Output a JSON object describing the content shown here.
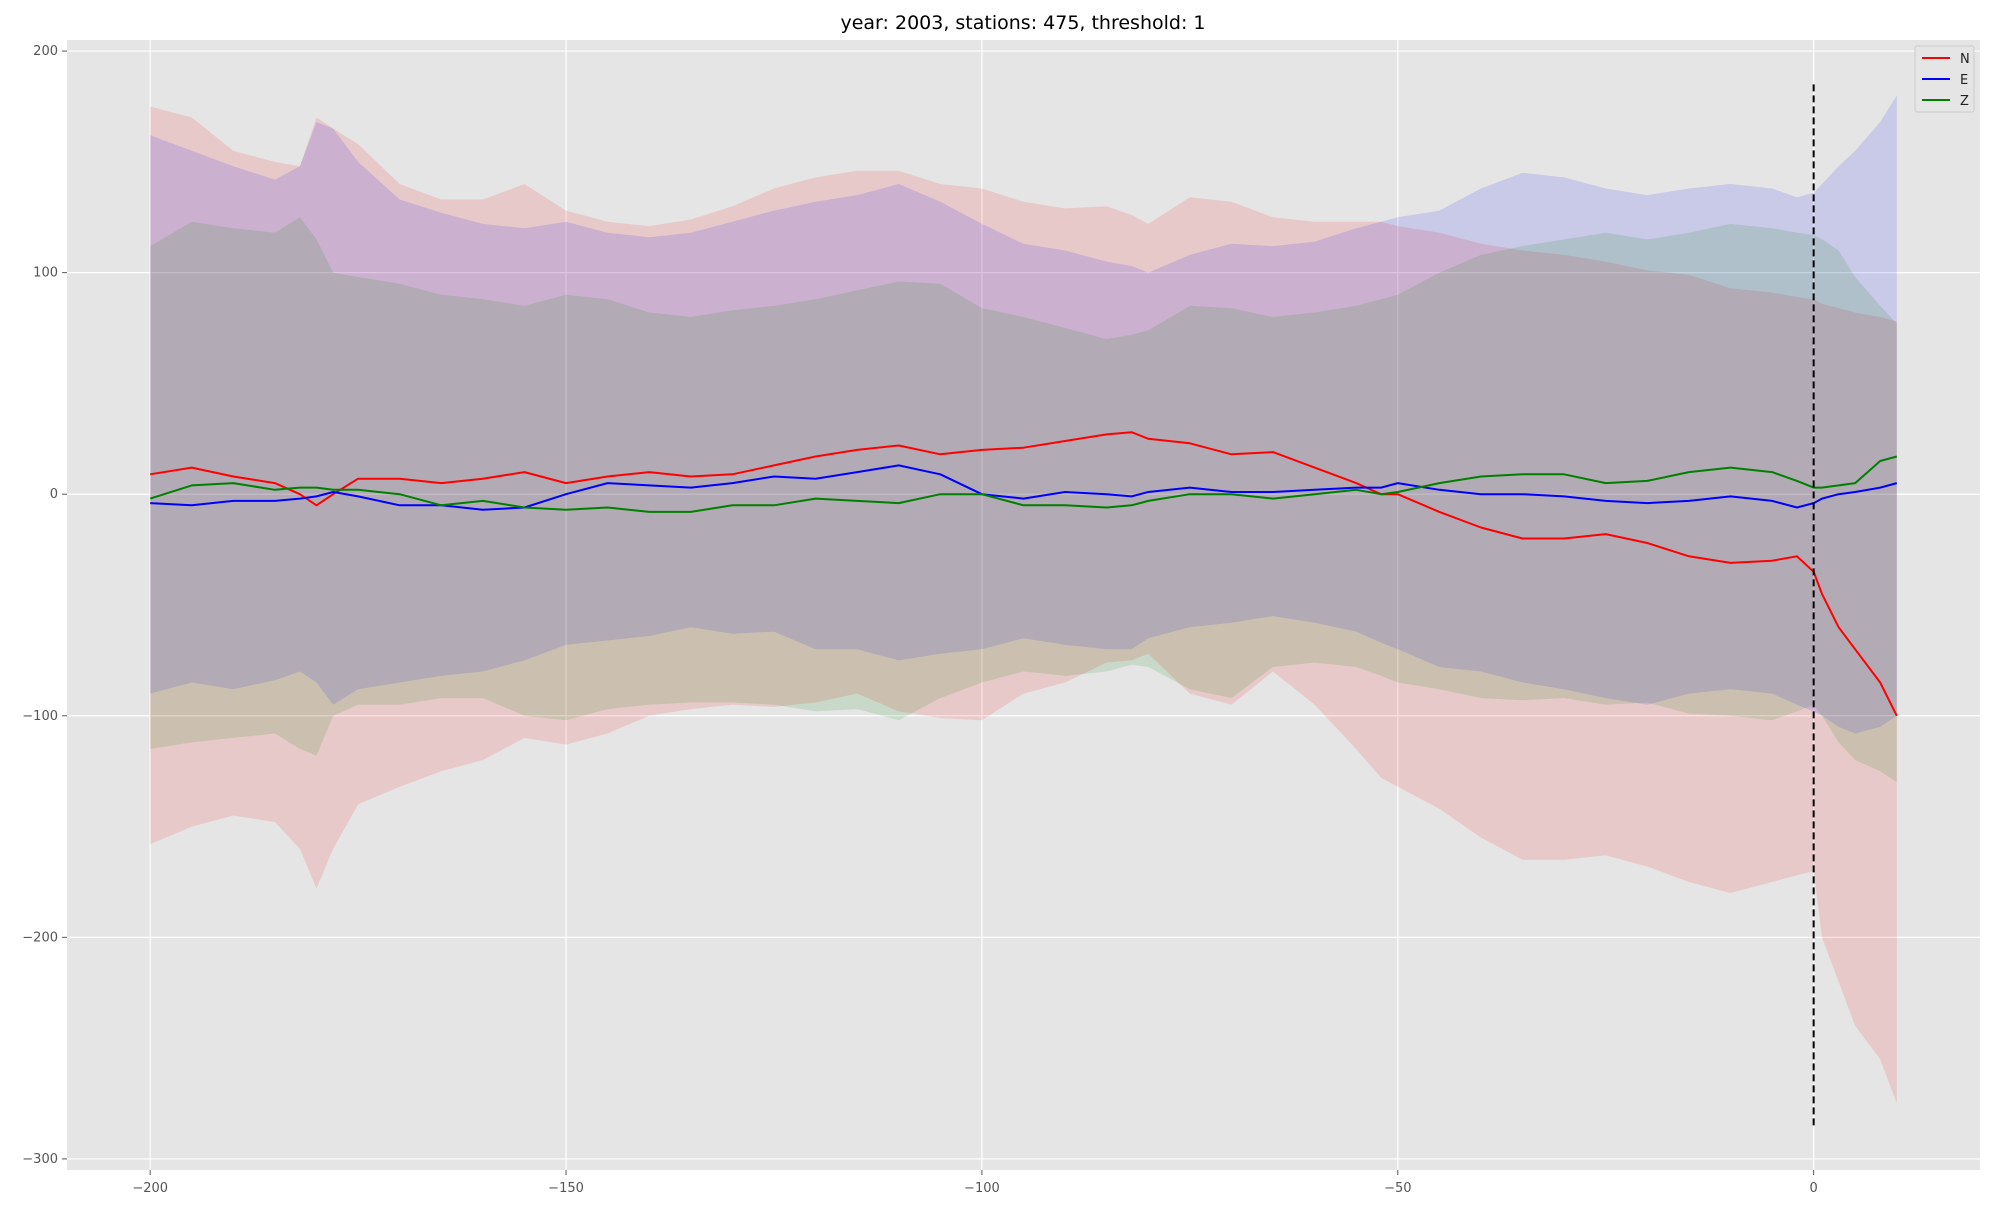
{
  "chart_data": {
    "type": "line",
    "title": "year: 2003, stations: 475, threshold: 1",
    "xlabel": "",
    "ylabel": "",
    "xlim": [
      -210,
      20
    ],
    "ylim": [
      -305,
      205
    ],
    "xticks": [
      -200,
      -150,
      -100,
      -50,
      0
    ],
    "xtick_labels": [
      "−200",
      "−150",
      "−100",
      "−50",
      "0"
    ],
    "yticks": [
      -300,
      -200,
      -100,
      0,
      100,
      200
    ],
    "ytick_labels": [
      "−300",
      "−200",
      "−100",
      "0",
      "100",
      "200"
    ],
    "grid": true,
    "legend_position": "upper right",
    "vline": {
      "x": 0,
      "y_range": [
        -285,
        185
      ],
      "style": "dashed",
      "color": "#000000"
    },
    "series": [
      {
        "name": "N",
        "color": "#ff0000",
        "x": [
          -200,
          -195,
          -190,
          -185,
          -182,
          -180,
          -178,
          -175,
          -170,
          -165,
          -160,
          -155,
          -150,
          -145,
          -140,
          -135,
          -130,
          -125,
          -120,
          -115,
          -110,
          -105,
          -100,
          -95,
          -90,
          -85,
          -82,
          -80,
          -75,
          -70,
          -65,
          -60,
          -55,
          -52,
          -50,
          -45,
          -40,
          -35,
          -30,
          -25,
          -20,
          -15,
          -10,
          -5,
          -2,
          0,
          1,
          3,
          5,
          8,
          10
        ],
        "values": [
          9,
          12,
          8,
          5,
          0,
          -5,
          0,
          7,
          7,
          5,
          7,
          10,
          5,
          8,
          10,
          8,
          9,
          13,
          17,
          20,
          22,
          18,
          20,
          21,
          24,
          27,
          28,
          25,
          23,
          18,
          19,
          12,
          5,
          0,
          0,
          -8,
          -15,
          -20,
          -20,
          -18,
          -22,
          -28,
          -31,
          -30,
          -28,
          -35,
          -45,
          -60,
          -70,
          -85,
          -100
        ],
        "band_upper": [
          175,
          170,
          155,
          150,
          148,
          170,
          165,
          158,
          140,
          133,
          133,
          140,
          128,
          123,
          121,
          124,
          130,
          138,
          143,
          146,
          146,
          140,
          138,
          132,
          129,
          130,
          126,
          122,
          134,
          132,
          125,
          123,
          123,
          123,
          121,
          118,
          113,
          110,
          108,
          105,
          101,
          99,
          93,
          91,
          89,
          88,
          86,
          84,
          82,
          80,
          78
        ],
        "band_lower": [
          -158,
          -150,
          -145,
          -148,
          -160,
          -178,
          -160,
          -140,
          -132,
          -125,
          -120,
          -110,
          -113,
          -108,
          -100,
          -97,
          -95,
          -96,
          -94,
          -90,
          -98,
          -101,
          -102,
          -90,
          -85,
          -76,
          -75,
          -72,
          -90,
          -95,
          -80,
          -95,
          -115,
          -128,
          -132,
          -142,
          -155,
          -165,
          -165,
          -163,
          -168,
          -175,
          -180,
          -175,
          -172,
          -170,
          -200,
          -220,
          -240,
          -255,
          -275
        ]
      },
      {
        "name": "E",
        "color": "#0000ff",
        "x": [
          -200,
          -195,
          -190,
          -185,
          -182,
          -180,
          -178,
          -175,
          -170,
          -165,
          -160,
          -155,
          -150,
          -145,
          -140,
          -135,
          -130,
          -125,
          -120,
          -115,
          -110,
          -105,
          -100,
          -95,
          -90,
          -85,
          -82,
          -80,
          -75,
          -70,
          -65,
          -60,
          -55,
          -52,
          -50,
          -45,
          -40,
          -35,
          -30,
          -25,
          -20,
          -15,
          -10,
          -5,
          -2,
          0,
          1,
          3,
          5,
          8,
          10
        ],
        "values": [
          -4,
          -5,
          -3,
          -3,
          -2,
          -1,
          1,
          -1,
          -5,
          -5,
          -7,
          -6,
          0,
          5,
          4,
          3,
          5,
          8,
          7,
          10,
          13,
          9,
          0,
          -2,
          1,
          0,
          -1,
          1,
          3,
          1,
          1,
          2,
          3,
          3,
          5,
          2,
          0,
          0,
          -1,
          -3,
          -4,
          -3,
          -1,
          -3,
          -6,
          -4,
          -2,
          0,
          1,
          3,
          5
        ],
        "band_upper": [
          162,
          155,
          148,
          142,
          148,
          168,
          165,
          150,
          133,
          127,
          122,
          120,
          123,
          118,
          116,
          118,
          123,
          128,
          132,
          135,
          140,
          132,
          122,
          113,
          110,
          105,
          103,
          100,
          108,
          113,
          112,
          114,
          120,
          123,
          125,
          128,
          138,
          145,
          143,
          138,
          135,
          138,
          140,
          138,
          134,
          136,
          140,
          148,
          155,
          168,
          180
        ],
        "band_lower": [
          -90,
          -85,
          -88,
          -84,
          -80,
          -85,
          -95,
          -88,
          -85,
          -82,
          -80,
          -75,
          -68,
          -66,
          -64,
          -60,
          -63,
          -62,
          -70,
          -70,
          -75,
          -72,
          -70,
          -65,
          -68,
          -70,
          -70,
          -65,
          -60,
          -58,
          -55,
          -58,
          -62,
          -67,
          -70,
          -78,
          -80,
          -85,
          -88,
          -92,
          -95,
          -90,
          -88,
          -90,
          -95,
          -98,
          -100,
          -105,
          -108,
          -105,
          -100
        ]
      },
      {
        "name": "Z",
        "color": "#008000",
        "x": [
          -200,
          -195,
          -190,
          -185,
          -182,
          -180,
          -178,
          -175,
          -170,
          -165,
          -160,
          -155,
          -150,
          -145,
          -140,
          -135,
          -130,
          -125,
          -120,
          -115,
          -110,
          -105,
          -100,
          -95,
          -90,
          -85,
          -82,
          -80,
          -75,
          -70,
          -65,
          -60,
          -55,
          -52,
          -50,
          -45,
          -40,
          -35,
          -30,
          -25,
          -20,
          -15,
          -10,
          -5,
          -2,
          0,
          1,
          3,
          5,
          8,
          10
        ],
        "values": [
          -2,
          4,
          5,
          2,
          3,
          3,
          2,
          2,
          0,
          -5,
          -3,
          -6,
          -7,
          -6,
          -8,
          -8,
          -5,
          -5,
          -2,
          -3,
          -4,
          0,
          0,
          -5,
          -5,
          -6,
          -5,
          -3,
          0,
          0,
          -2,
          0,
          2,
          0,
          1,
          5,
          8,
          9,
          9,
          5,
          6,
          10,
          12,
          10,
          6,
          3,
          3,
          4,
          5,
          15,
          17
        ],
        "band_upper": [
          112,
          123,
          120,
          118,
          125,
          115,
          100,
          98,
          95,
          90,
          88,
          85,
          90,
          88,
          82,
          80,
          83,
          85,
          88,
          92,
          96,
          95,
          84,
          80,
          75,
          70,
          72,
          74,
          85,
          84,
          80,
          82,
          85,
          88,
          90,
          100,
          108,
          112,
          115,
          118,
          115,
          118,
          122,
          120,
          118,
          117,
          115,
          110,
          98,
          85,
          77
        ],
        "band_lower": [
          -115,
          -112,
          -110,
          -108,
          -115,
          -118,
          -100,
          -95,
          -95,
          -92,
          -92,
          -100,
          -102,
          -97,
          -95,
          -94,
          -94,
          -95,
          -98,
          -97,
          -102,
          -92,
          -85,
          -80,
          -82,
          -80,
          -77,
          -78,
          -88,
          -92,
          -78,
          -76,
          -78,
          -82,
          -85,
          -88,
          -92,
          -93,
          -92,
          -95,
          -94,
          -99,
          -100,
          -102,
          -98,
          -95,
          -100,
          -112,
          -120,
          -125,
          -130
        ]
      }
    ]
  }
}
